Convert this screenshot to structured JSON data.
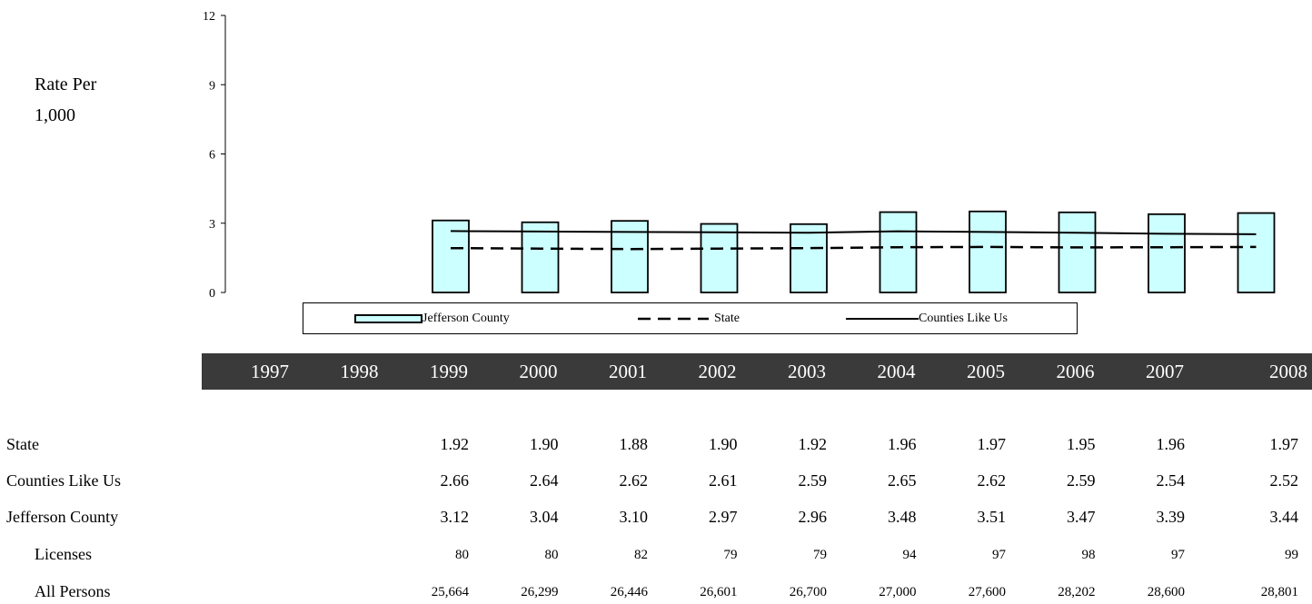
{
  "chart_data": {
    "type": "bar",
    "ylabel_lines": [
      "Rate Per",
      "1,000"
    ],
    "ylim": [
      0,
      12
    ],
    "yticks": [
      0,
      3,
      6,
      9,
      12
    ],
    "categories": [
      "1997",
      "1998",
      "1999",
      "2000",
      "2001",
      "2002",
      "2003",
      "2004",
      "2005",
      "2006",
      "2007",
      "2008"
    ],
    "series": [
      {
        "name": "Jefferson County",
        "kind": "bar",
        "color": "#ccffff",
        "values": [
          null,
          null,
          3.12,
          3.04,
          3.1,
          2.97,
          2.96,
          3.48,
          3.51,
          3.47,
          3.39,
          3.44
        ]
      },
      {
        "name": "State",
        "kind": "dashed-line",
        "color": "#000000",
        "values": [
          null,
          null,
          1.92,
          1.9,
          1.88,
          1.9,
          1.92,
          1.96,
          1.97,
          1.95,
          1.96,
          1.97
        ]
      },
      {
        "name": "Counties Like Us",
        "kind": "line",
        "color": "#000000",
        "values": [
          null,
          null,
          2.66,
          2.64,
          2.62,
          2.61,
          2.59,
          2.65,
          2.62,
          2.59,
          2.54,
          2.52
        ]
      }
    ],
    "legend": "bottom",
    "grid": false
  },
  "table": {
    "rows": [
      {
        "label": "State",
        "sub": false,
        "size": "big",
        "cells": [
          "",
          "",
          "1.92",
          "1.90",
          "1.88",
          "1.90",
          "1.92",
          "1.96",
          "1.97",
          "1.95",
          "1.96",
          "1.97"
        ]
      },
      {
        "label": "Counties Like Us",
        "sub": false,
        "size": "big",
        "cells": [
          "",
          "",
          "2.66",
          "2.64",
          "2.62",
          "2.61",
          "2.59",
          "2.65",
          "2.62",
          "2.59",
          "2.54",
          "2.52"
        ]
      },
      {
        "label": "Jefferson County",
        "sub": false,
        "size": "big",
        "cells": [
          "",
          "",
          "3.12",
          "3.04",
          "3.10",
          "2.97",
          "2.96",
          "3.48",
          "3.51",
          "3.47",
          "3.39",
          "3.44"
        ]
      },
      {
        "label": "Licenses",
        "sub": true,
        "size": "small",
        "cells": [
          "",
          "",
          "80",
          "80",
          "82",
          "79",
          "79",
          "94",
          "97",
          "98",
          "97",
          "99"
        ]
      },
      {
        "label": "All Persons",
        "sub": true,
        "size": "small",
        "cells": [
          "",
          "",
          "25,664",
          "26,299",
          "26,446",
          "26,601",
          "26,700",
          "27,000",
          "27,600",
          "28,202",
          "28,600",
          "28,801"
        ]
      }
    ]
  }
}
